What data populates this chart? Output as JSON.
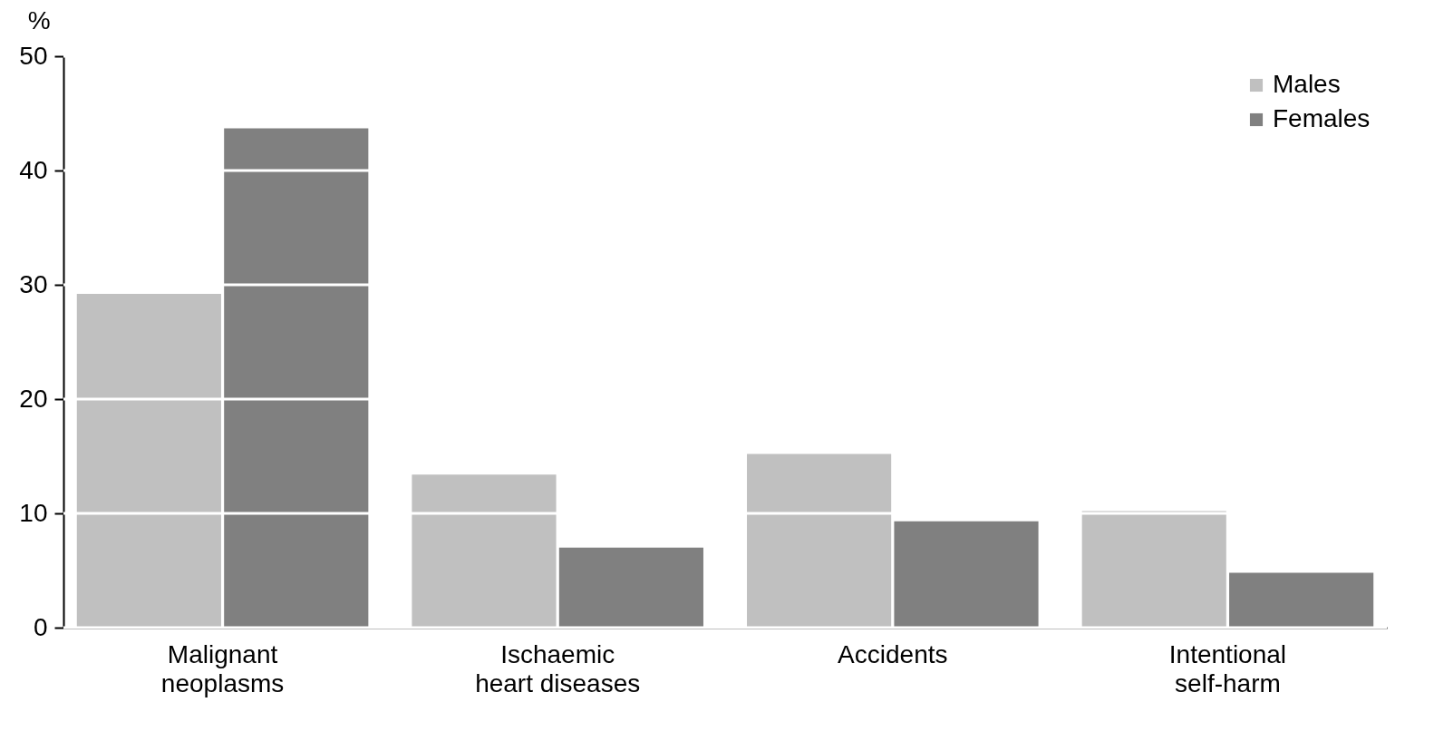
{
  "chart_data": {
    "type": "bar",
    "ylabel": "%",
    "categories": [
      "Malignant neoplasms",
      "Ischaemic heart diseases",
      "Accidents",
      "Intentional self-harm"
    ],
    "series": [
      {
        "name": "Males",
        "color": "#c0c0c0",
        "values": [
          29.2,
          13.4,
          15.2,
          10.2
        ]
      },
      {
        "name": "Females",
        "color": "#808080",
        "values": [
          43.7,
          7.0,
          9.3,
          4.8
        ]
      }
    ],
    "ylim": [
      0,
      50
    ],
    "yticks": [
      0,
      10,
      20,
      30,
      40,
      50
    ],
    "grid": "y",
    "legend": "top right"
  }
}
